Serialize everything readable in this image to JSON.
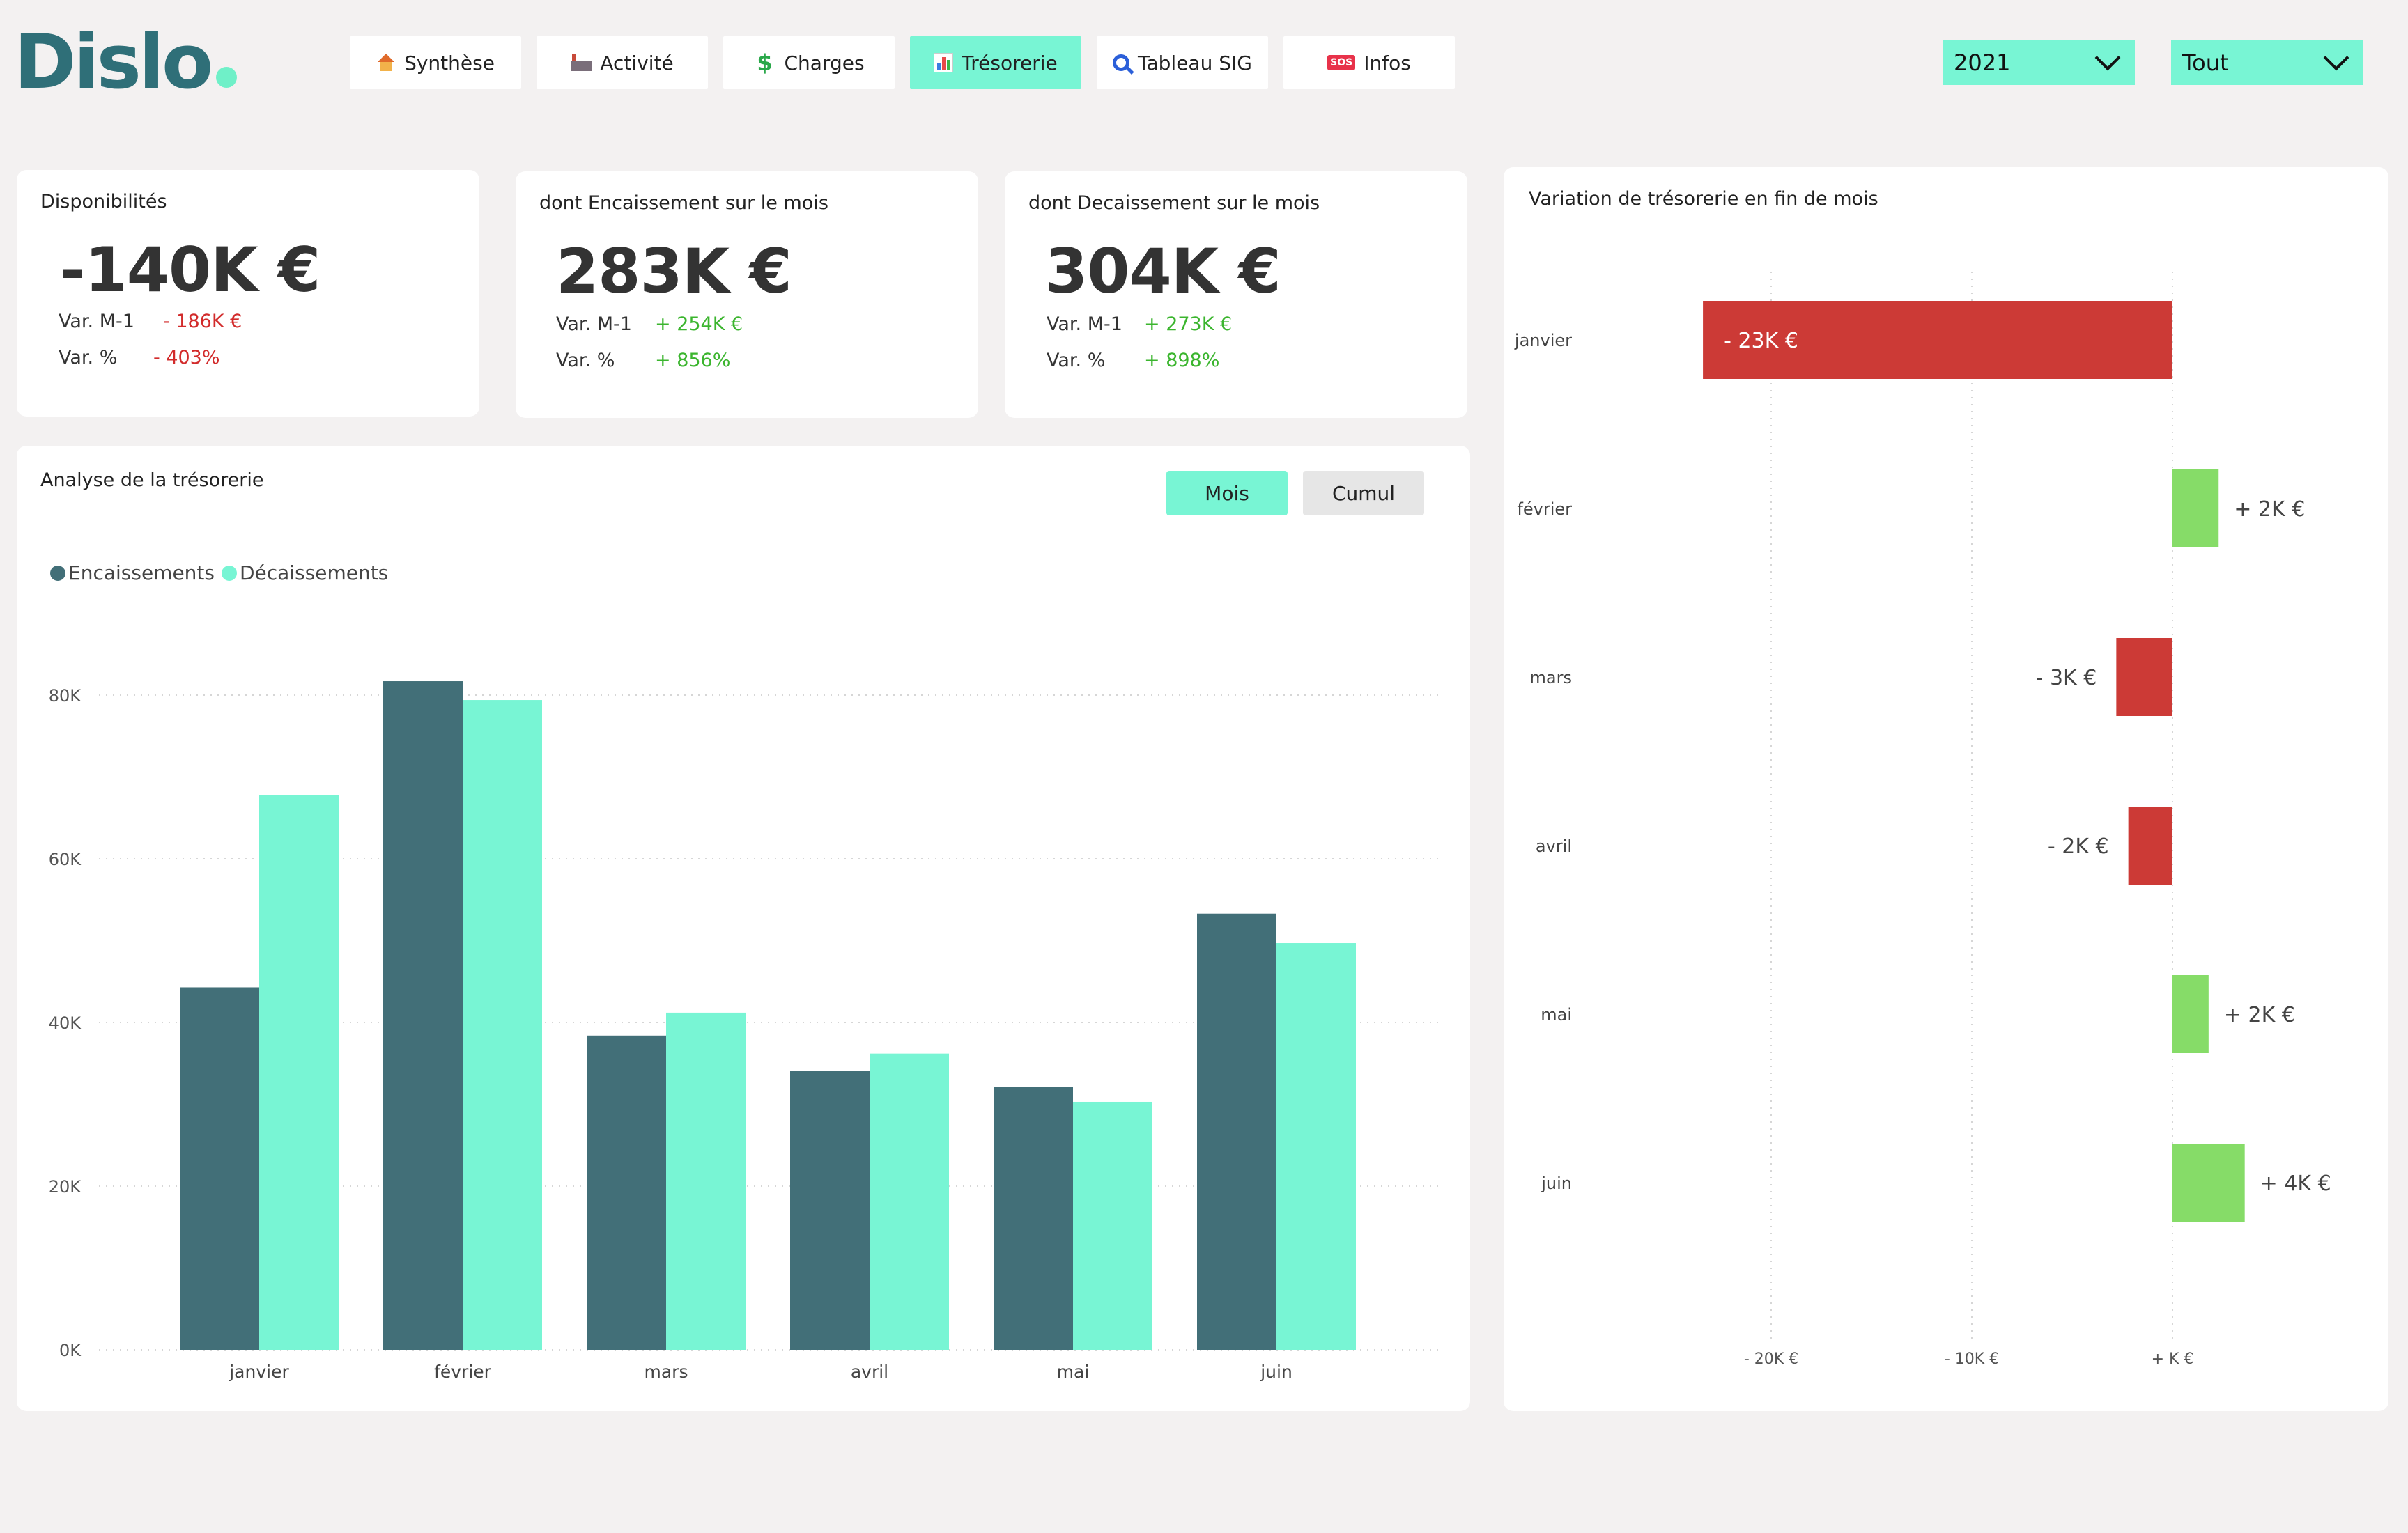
{
  "app": {
    "logo_text": "Dislo"
  },
  "nav": [
    {
      "label": "Synthèse",
      "icon": "house-icon"
    },
    {
      "label": "Activité",
      "icon": "factory-icon"
    },
    {
      "label": "Charges",
      "icon": "dollar-icon"
    },
    {
      "label": "Trésorerie",
      "icon": "bar-chart-icon",
      "active": true
    },
    {
      "label": "Tableau SIG",
      "icon": "magnifier-icon"
    },
    {
      "label": "Infos",
      "icon": "sos-icon"
    }
  ],
  "filters": {
    "year": {
      "value": "2021"
    },
    "scope": {
      "value": "Tout"
    }
  },
  "kpis": {
    "dispo": {
      "title": "Disponibilités",
      "value": "-140K €",
      "var_m1_label": "Var. M-1",
      "var_m1": "- 186K €",
      "var_pct_label": "Var. %",
      "var_pct": "- 403%"
    },
    "encaissement": {
      "title": "dont Encaissement sur le mois",
      "value": "283K €",
      "var_m1_label": "Var. M-1",
      "var_m1": "+ 254K €",
      "var_pct_label": "Var. %",
      "var_pct": "+ 856%"
    },
    "decaissement": {
      "title": "dont Decaissement sur le mois",
      "value": "304K €",
      "var_m1_label": "Var. M-1",
      "var_m1": "+ 273K €",
      "var_pct_label": "Var. %",
      "var_pct": "+ 898%"
    }
  },
  "analysis": {
    "title": "Analyse de la trésorerie",
    "toggle": {
      "mois": "Mois",
      "cumul": "Cumul",
      "selected": "Mois"
    },
    "colors": {
      "encaissements": "#426f78",
      "decaissements": "#78f5d4"
    }
  },
  "variation": {
    "title": "Variation de trésorerie en fin de mois",
    "colors": {
      "negative": "#cc3a36",
      "positive": "#86dc68"
    }
  },
  "chart_data": [
    {
      "type": "bar",
      "title": "Analyse de la trésorerie",
      "categories": [
        "janvier",
        "février",
        "mars",
        "avril",
        "mai",
        "juin"
      ],
      "series": [
        {
          "name": "Encaissements",
          "values": [
            44300,
            81700,
            38400,
            34100,
            32100,
            53300
          ]
        },
        {
          "name": "Décaissements",
          "values": [
            67800,
            79400,
            41200,
            36200,
            30300,
            49700
          ]
        }
      ],
      "ylim": [
        0,
        80000
      ],
      "yticks": [
        "0K",
        "20K",
        "40K",
        "60K",
        "80K"
      ],
      "grid": true,
      "legend": "top-left"
    },
    {
      "type": "bar",
      "orientation": "horizontal",
      "title": "Variation de trésorerie en fin de mois",
      "categories": [
        "janvier",
        "février",
        "mars",
        "avril",
        "mai",
        "juin"
      ],
      "values": [
        -23400,
        2300,
        -2800,
        -2200,
        1800,
        3600
      ],
      "data_labels": [
        "- 23K €",
        "+ 2K €",
        "- 3K €",
        "- 2K €",
        "+ 2K €",
        "+ 4K €"
      ],
      "xticks": [
        "- 20K €",
        "- 10K €",
        "+ K €"
      ],
      "xtick_values": [
        -20000,
        -10000,
        0
      ],
      "grid": true
    }
  ]
}
